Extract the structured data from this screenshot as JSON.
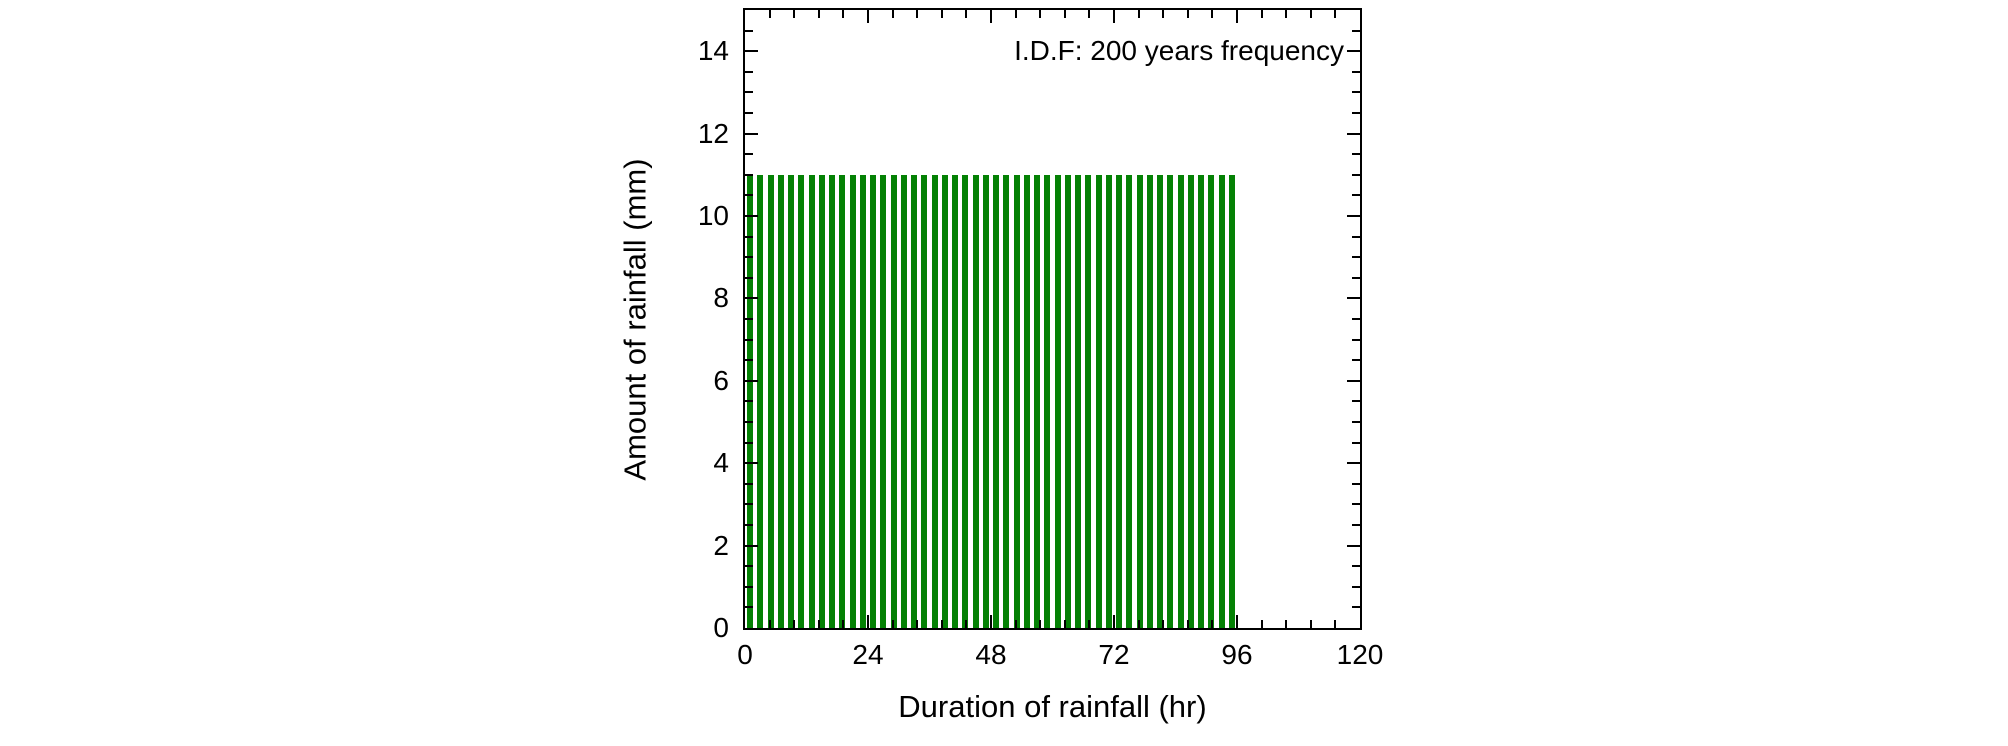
{
  "chart_data": {
    "type": "bar",
    "title": "",
    "annotation": "I.D.F: 200 years frequency",
    "xlabel": "Duration of rainfall (hr)",
    "ylabel": "Amount of rainfall (mm)",
    "xlim": [
      0,
      120
    ],
    "ylim": [
      0,
      15
    ],
    "x_major_ticks": [
      0,
      24,
      48,
      72,
      96,
      120
    ],
    "x_minor_step": 4.8,
    "y_major_ticks": [
      0,
      2,
      4,
      6,
      8,
      10,
      12,
      14
    ],
    "y_minor_step": 0.5,
    "bar_width_hr": 2,
    "categories": [
      2,
      4,
      6,
      8,
      10,
      12,
      14,
      16,
      18,
      20,
      22,
      24,
      26,
      28,
      30,
      32,
      34,
      36,
      38,
      40,
      42,
      44,
      46,
      48,
      50,
      52,
      54,
      56,
      58,
      60,
      62,
      64,
      66,
      68,
      70,
      72,
      74,
      76,
      78,
      80,
      82,
      84,
      86,
      88,
      90,
      92,
      94,
      96
    ],
    "values": [
      11,
      11,
      11,
      11,
      11,
      11,
      11,
      11,
      11,
      11,
      11,
      11,
      11,
      11,
      11,
      11,
      11,
      11,
      11,
      11,
      11,
      11,
      11,
      11,
      11,
      11,
      11,
      11,
      11,
      11,
      11,
      11,
      11,
      11,
      11,
      11,
      11,
      11,
      11,
      11,
      11,
      11,
      11,
      11,
      11,
      11,
      11,
      11
    ],
    "grid": false,
    "legend": "none",
    "colors": {
      "bar": "#048104",
      "frame": "#000000",
      "text": "#000000",
      "background": "#ffffff"
    }
  }
}
